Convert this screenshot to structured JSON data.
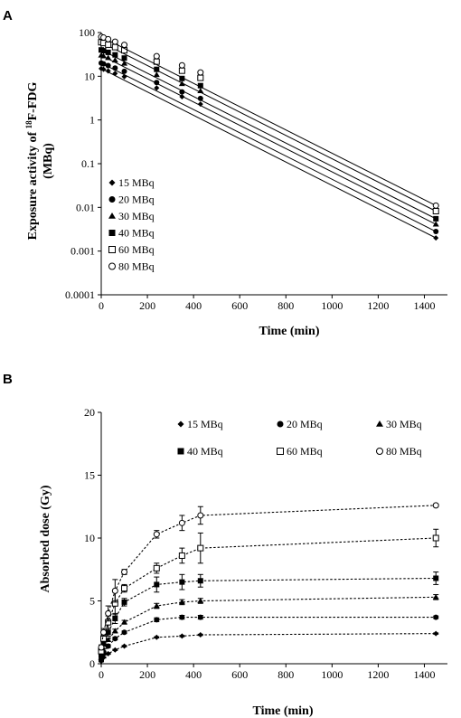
{
  "chart_data": [
    {
      "panel": "A",
      "type": "line",
      "xlabel": "Time (min)",
      "ylabel": "Exposure activity of ¹⁸F-FDG (MBq)",
      "ylabel_line1": "Exposure activity of",
      "ylabel_sup": "18",
      "ylabel_rest": "F-FDG",
      "ylabel_line2": "(MBq)",
      "xlim": [
        0,
        1500
      ],
      "ylim": [
        0.0001,
        100
      ],
      "yscale": "log",
      "x_ticks": [
        0,
        200,
        400,
        600,
        800,
        1000,
        1200,
        1400
      ],
      "y_ticks": [
        0.0001,
        0.001,
        0.01,
        0.1,
        1,
        10,
        100
      ],
      "y_tick_labels": [
        "0.0001",
        "0.001",
        "0.01",
        "0.1",
        "1",
        "10",
        "100"
      ],
      "legend_position": "lower-left",
      "x": [
        0,
        10,
        30,
        60,
        100,
        240,
        350,
        430,
        1450
      ],
      "series": [
        {
          "name": "15 MBq",
          "marker": "diamond",
          "values": [
            15,
            14.4,
            13.2,
            11.6,
            9.8,
            5.4,
            3.4,
            2.3,
            0.002
          ]
        },
        {
          "name": "20 MBq",
          "marker": "circle-filled",
          "values": [
            20,
            19.2,
            17.6,
            15.4,
            13,
            7.2,
            4.4,
            3.1,
            0.0028
          ]
        },
        {
          "name": "30 MBq",
          "marker": "triangle",
          "values": [
            30,
            28.8,
            26.4,
            23.2,
            19.6,
            10.8,
            6.7,
            4.6,
            0.0041
          ]
        },
        {
          "name": "40 MBq",
          "marker": "square-filled",
          "values": [
            40,
            38.4,
            35.2,
            30.9,
            26.1,
            14.4,
            8.9,
            6.1,
            0.0055
          ]
        },
        {
          "name": "60 MBq",
          "marker": "square-open",
          "values": [
            60,
            57.6,
            52.8,
            46.4,
            39.2,
            21.6,
            13.4,
            9.2,
            0.0082
          ]
        },
        {
          "name": "80 MBq",
          "marker": "circle-open",
          "values": [
            80,
            76.8,
            70.4,
            61.8,
            52.2,
            28.8,
            17.8,
            12.2,
            0.011
          ]
        }
      ]
    },
    {
      "panel": "B",
      "type": "line",
      "xlabel": "Time (min)",
      "ylabel": "Absorbed dose (Gy)",
      "xlim": [
        0,
        1500
      ],
      "ylim": [
        0,
        20
      ],
      "x_ticks": [
        0,
        200,
        400,
        600,
        800,
        1000,
        1200,
        1400
      ],
      "y_ticks": [
        0,
        5,
        10,
        15,
        20
      ],
      "y_tick_labels": [
        "0",
        "5",
        "10",
        "15",
        "20"
      ],
      "legend_position": "top-right",
      "x": [
        0,
        10,
        30,
        60,
        100,
        240,
        350,
        430,
        1450
      ],
      "series": [
        {
          "name": "15 MBq",
          "marker": "diamond",
          "values": [
            0.2,
            0.5,
            0.8,
            1.1,
            1.4,
            2.1,
            2.2,
            2.3,
            2.4
          ],
          "errors": [
            0.05,
            0.05,
            0.05,
            0.05,
            0.05,
            0.05,
            0.05,
            0.05,
            0.05
          ]
        },
        {
          "name": "20 MBq",
          "marker": "circle-filled",
          "values": [
            0.3,
            0.8,
            1.4,
            2.0,
            2.5,
            3.5,
            3.7,
            3.7,
            3.7
          ],
          "errors": [
            0.05,
            0.1,
            0.1,
            0.1,
            0.1,
            0.15,
            0.15,
            0.15,
            0.1
          ]
        },
        {
          "name": "30 MBq",
          "marker": "triangle",
          "values": [
            0.5,
            1.1,
            1.9,
            2.6,
            3.3,
            4.6,
            4.9,
            5.0,
            5.3
          ],
          "errors": [
            0.05,
            0.1,
            0.1,
            0.15,
            0.15,
            0.2,
            0.2,
            0.2,
            0.2
          ]
        },
        {
          "name": "40 MBq",
          "marker": "square-filled",
          "values": [
            0.7,
            1.6,
            2.5,
            3.6,
            4.9,
            6.3,
            6.5,
            6.6,
            6.8
          ],
          "errors": [
            0.1,
            0.2,
            0.3,
            0.4,
            0.3,
            0.6,
            0.6,
            0.5,
            0.5
          ]
        },
        {
          "name": "60 MBq",
          "marker": "square-open",
          "values": [
            1.0,
            2.0,
            3.3,
            4.8,
            6.0,
            7.6,
            8.6,
            9.2,
            10.0
          ],
          "errors": [
            0.2,
            0.3,
            0.5,
            0.9,
            0.3,
            0.4,
            0.6,
            1.2,
            0.7
          ]
        },
        {
          "name": "80 MBq",
          "marker": "circle-open",
          "values": [
            1.3,
            2.5,
            4.0,
            5.8,
            7.3,
            10.3,
            11.2,
            11.8,
            12.6
          ],
          "errors": [
            0.2,
            0.3,
            0.6,
            0.9,
            0.2,
            0.3,
            0.6,
            0.7,
            0.1
          ]
        }
      ]
    }
  ]
}
